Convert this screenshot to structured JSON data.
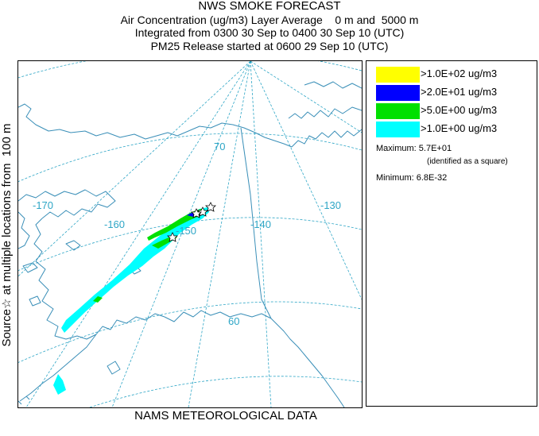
{
  "title": {
    "line1": "NWS SMOKE FORECAST",
    "line2": "Air Concentration (ug/m3) Layer Average    0 m and  5000 m",
    "line3": "Integrated from 0300 30 Sep to 0400 30 Sep 10 (UTC)",
    "line4": "PM25 Release started at 0600 29 Sep 10 (UTC)"
  },
  "side_label": "Source☆ at multiple locations from  100 m",
  "footer": "NAMS METEOROLOGICAL DATA",
  "map": {
    "graticule_labels": {
      "lat_70": "70",
      "lat_60": "60",
      "lon_170": "-170",
      "lon_160": "-160",
      "lon_150": "-150",
      "lon_140": "-140",
      "lon_130": "-130"
    },
    "colors": {
      "coastline": "#3a8fb8",
      "graticule": "#2ea6c6"
    }
  },
  "legend": {
    "items": [
      {
        "label": ">1.0E+02 ug/m3",
        "color": "#ffff00"
      },
      {
        "label": ">2.0E+01 ug/m3",
        "color": "#0000ff"
      },
      {
        "label": ">5.0E+00 ug/m3",
        "color": "#00e000"
      },
      {
        "label": ">1.0E+00 ug/m3",
        "color": "#00ffff"
      }
    ],
    "maximum": "Maximum: 5.7E+01",
    "maximum_note": "(identified as a square)",
    "minimum": "Minimum: 6.8E-32"
  }
}
